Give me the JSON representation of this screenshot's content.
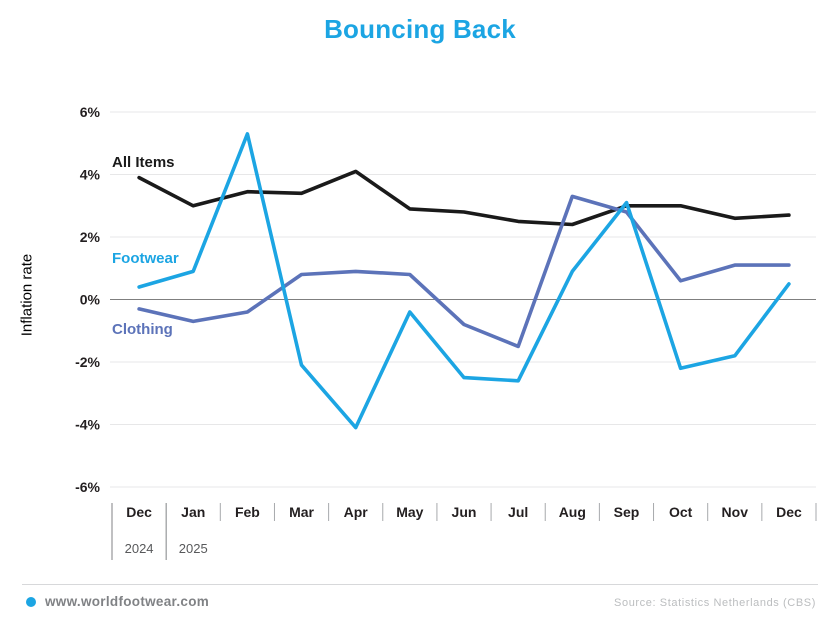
{
  "title": "Bouncing Back",
  "ylabel": "Inflation rate",
  "footer": {
    "website": "www.worldfootwear.com",
    "source": "Source: Statistics Netherlands (CBS)"
  },
  "colors": {
    "accent_blue": "#1CA5E3",
    "all_items_black": "#1A1A1A",
    "footwear_blue": "#1CA5E3",
    "clothing_slate": "#5C73B9",
    "grid": "#E7E7E8",
    "zero_line": "#7F7F7F",
    "axis_text": "#231F20",
    "year_text": "#58595B",
    "separator_tall": "#808285",
    "separator_short": "#A7A9AC",
    "footer_text": "#808285",
    "source_text": "#BBBDBF"
  },
  "chart_data": {
    "type": "line",
    "title": "Bouncing Back",
    "ylabel": "Inflation rate",
    "xlabel": "",
    "categories": [
      "Dec",
      "Jan",
      "Feb",
      "Mar",
      "Apr",
      "May",
      "Jun",
      "Jul",
      "Aug",
      "Sep",
      "Oct",
      "Nov",
      "Dec"
    ],
    "year_labels": [
      {
        "label": "2024",
        "index": 0
      },
      {
        "label": "2025",
        "index": 1
      }
    ],
    "series": [
      {
        "name": "All Items",
        "color": "#1A1A1A",
        "values": [
          3.9,
          3.0,
          3.45,
          3.4,
          4.1,
          2.9,
          2.8,
          2.5,
          2.4,
          3.0,
          3.0,
          2.6,
          2.7
        ]
      },
      {
        "name": "Footwear",
        "color": "#1CA5E3",
        "values": [
          0.4,
          0.9,
          5.3,
          -2.1,
          -4.1,
          -0.4,
          -2.5,
          -2.6,
          0.9,
          3.1,
          -2.2,
          -1.8,
          0.5
        ]
      },
      {
        "name": "Clothing",
        "color": "#5C73B9",
        "values": [
          -0.3,
          -0.7,
          -0.4,
          0.8,
          0.9,
          0.8,
          -0.8,
          -1.5,
          3.3,
          2.8,
          0.6,
          1.1,
          1.1
        ]
      }
    ],
    "yticks": [
      6,
      4,
      2,
      0,
      -2,
      -4,
      -6
    ],
    "ytick_labels": [
      "6%",
      "4%",
      "2%",
      "0%",
      "-2%",
      "-4%",
      "-6%"
    ],
    "ylim": [
      -6,
      6
    ],
    "grid": true,
    "legend_position": "inline-left"
  }
}
